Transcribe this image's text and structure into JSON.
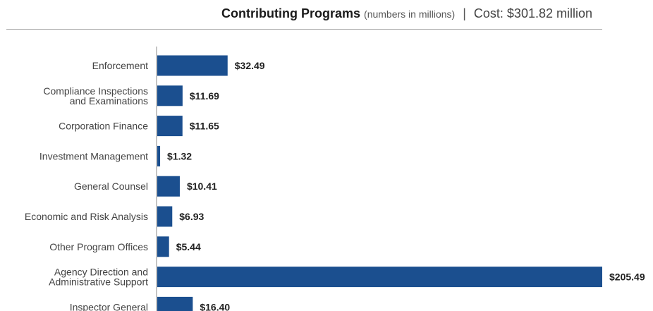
{
  "header": {
    "title": "Contributing Programs",
    "subtitle": "(numbers in millions)",
    "separator": "|",
    "cost": "Cost: $301.82 million"
  },
  "chart_data": {
    "type": "bar",
    "orientation": "horizontal",
    "title": "Contributing Programs",
    "categories": [
      [
        "Enforcement"
      ],
      [
        "Compliance Inspections",
        "and Examinations"
      ],
      [
        "Corporation Finance"
      ],
      [
        "Investment Management"
      ],
      [
        "General Counsel"
      ],
      [
        "Economic and Risk Analysis"
      ],
      [
        "Other Program Offices"
      ],
      [
        "Agency Direction and",
        "Administrative Support"
      ],
      [
        "Inspector General"
      ]
    ],
    "values": [
      32.49,
      11.69,
      11.65,
      1.32,
      10.41,
      6.93,
      5.44,
      205.49,
      16.4
    ],
    "value_labels": [
      "$32.49",
      "$11.69",
      "$11.65",
      "$1.32",
      "$10.41",
      "$6.93",
      "$5.44",
      "$205.49",
      "$16.40"
    ],
    "xlim": [
      0,
      205.49
    ],
    "grid": false,
    "bar_color": "#1b4f8f",
    "axis_color": "#888888"
  }
}
